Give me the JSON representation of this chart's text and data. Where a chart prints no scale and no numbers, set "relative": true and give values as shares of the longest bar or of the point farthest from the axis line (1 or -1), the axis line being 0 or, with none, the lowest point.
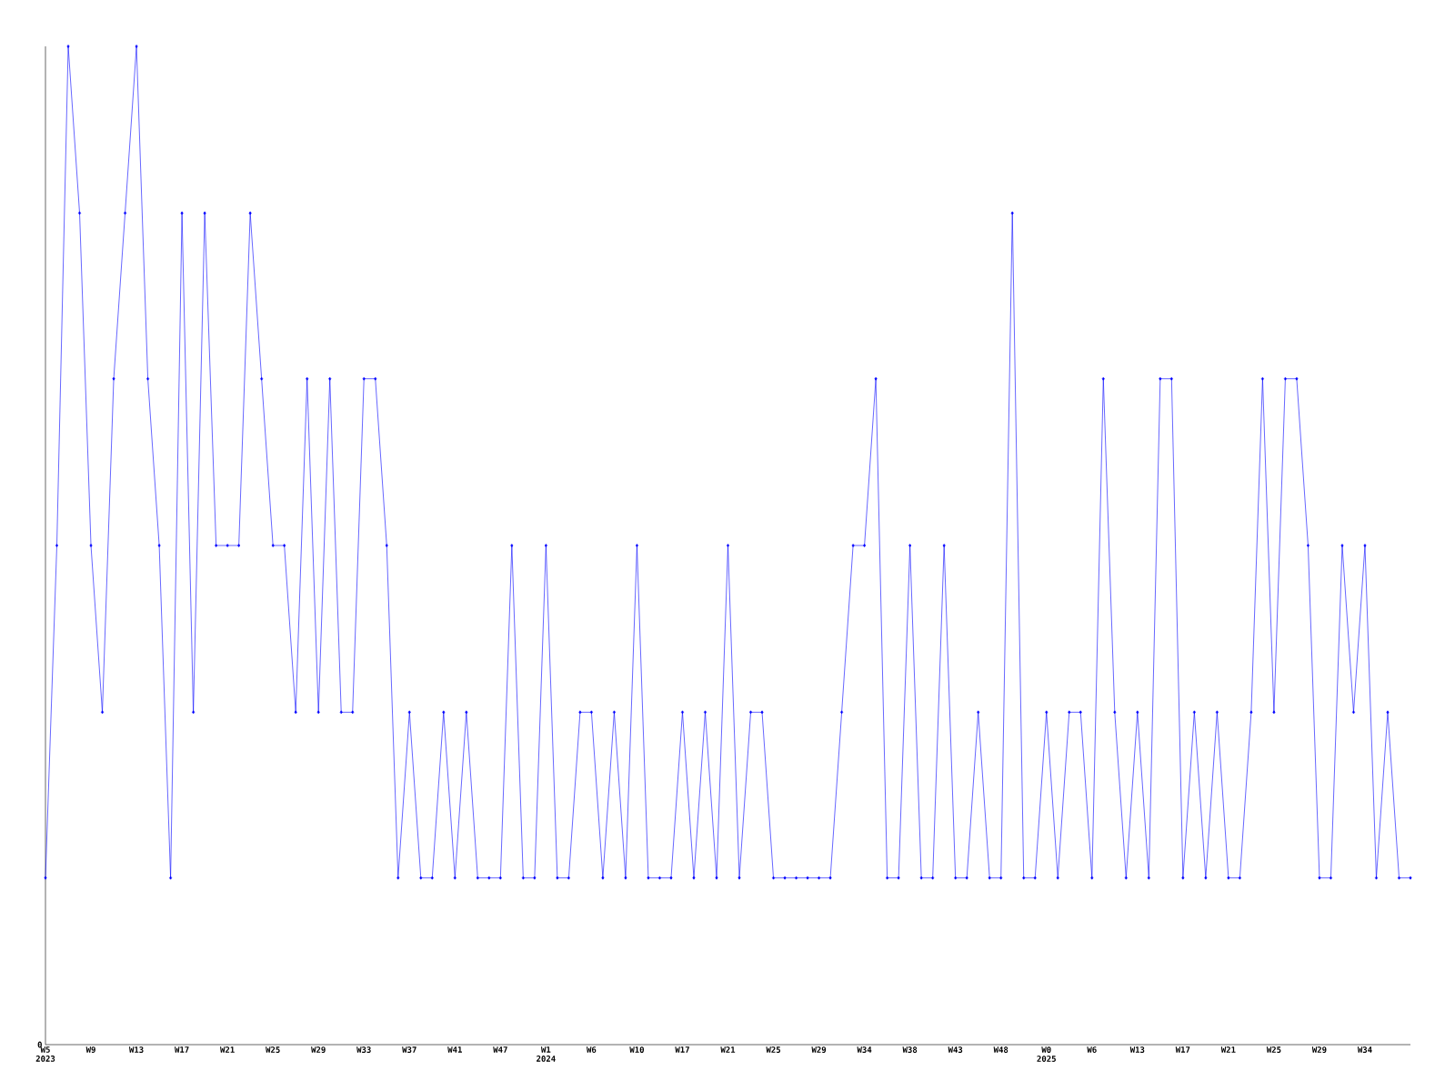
{
  "chart_data": {
    "type": "line",
    "relative": true,
    "color": "#0000ff",
    "marker": "diamond",
    "line_style": "solid",
    "categories": [
      "W5 2023",
      null,
      null,
      null,
      "W9",
      null,
      null,
      null,
      "W13",
      null,
      null,
      null,
      "W17",
      null,
      null,
      null,
      "W21",
      null,
      null,
      null,
      "W25",
      null,
      null,
      null,
      "W29",
      null,
      null,
      null,
      "W33",
      null,
      null,
      null,
      "W37",
      null,
      null,
      null,
      "W41",
      null,
      null,
      null,
      "W47",
      null,
      null,
      null,
      "W1 2024",
      null,
      null,
      null,
      "W6",
      null,
      null,
      null,
      "W10",
      null,
      null,
      null,
      "W17",
      null,
      null,
      null,
      "W21",
      null,
      null,
      null,
      "W25",
      null,
      null,
      null,
      "W29",
      null,
      null,
      null,
      "W34",
      null,
      null,
      null,
      "W38",
      null,
      null,
      null,
      "W43",
      null,
      null,
      null,
      "W48",
      null,
      null,
      null,
      "W0 2025",
      null,
      null,
      null,
      "W6",
      null,
      null,
      null,
      "W13",
      null,
      null,
      null,
      "W17",
      null,
      null,
      null,
      "W21",
      null,
      null,
      null,
      "W25",
      null,
      null,
      null,
      "W29",
      null,
      null,
      null,
      "W34",
      null,
      null,
      null,
      null
    ],
    "values": [
      0.167,
      0.5,
      1,
      0.833,
      0.5,
      0.333,
      0.667,
      0.833,
      1,
      0.667,
      0.5,
      0.167,
      0.833,
      0.333,
      0.833,
      0.5,
      0.5,
      0.5,
      0.833,
      0.667,
      0.5,
      0.5,
      0.333,
      0.667,
      0.333,
      0.667,
      0.333,
      0.333,
      0.667,
      0.667,
      0.5,
      0.167,
      0.333,
      0.167,
      0.167,
      0.333,
      0.167,
      0.333,
      0.167,
      0.167,
      0.167,
      0.5,
      0.167,
      0.167,
      0.5,
      0.167,
      0.167,
      0.333,
      0.333,
      0.167,
      0.333,
      0.167,
      0.5,
      0.167,
      0.167,
      0.167,
      0.333,
      0.167,
      0.333,
      0.167,
      0.5,
      0.167,
      0.333,
      0.333,
      0.167,
      0.167,
      0.167,
      0.167,
      0.167,
      0.167,
      0.333,
      0.5,
      0.5,
      0.667,
      0.167,
      0.167,
      0.5,
      0.167,
      0.167,
      0.5,
      0.167,
      0.167,
      0.333,
      0.167,
      0.167,
      0.833,
      0.167,
      0.167,
      0.333,
      0.167,
      0.333,
      0.333,
      0.167,
      0.667,
      0.333,
      0.167,
      0.333,
      0.167,
      0.667,
      0.667,
      0.167,
      0.333,
      0.167,
      0.333,
      0.167,
      0.167,
      0.333,
      0.667,
      0.333,
      0.667,
      0.667,
      0.5,
      0.167,
      0.167,
      0.5,
      0.333,
      0.5,
      0.167,
      0.333,
      0.167,
      0.167
    ],
    "annotations": [
      "0"
    ]
  }
}
